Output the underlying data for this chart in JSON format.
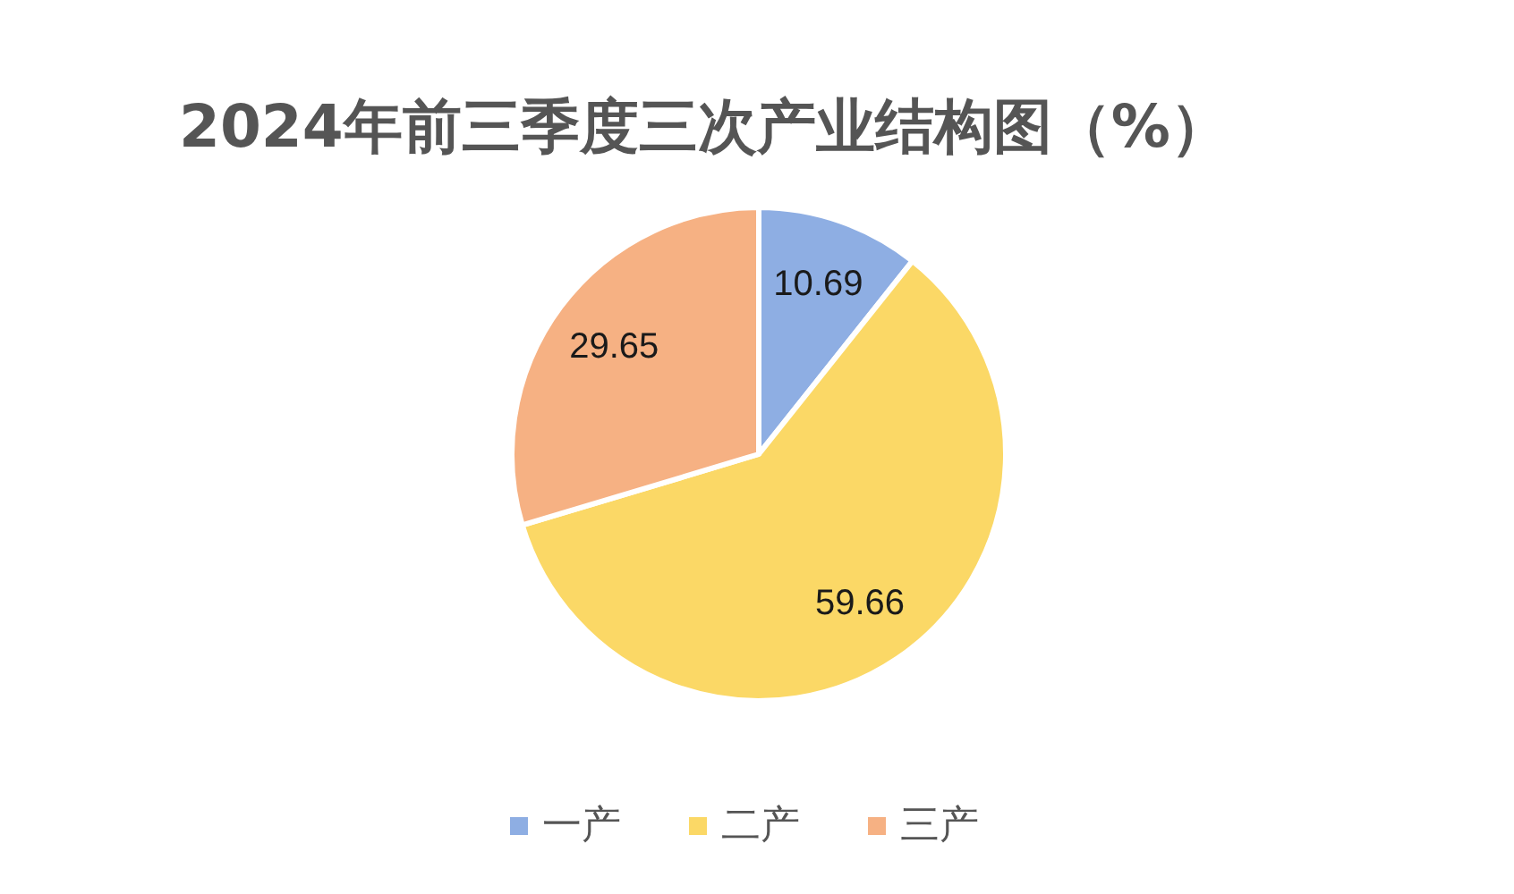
{
  "chart_data": {
    "type": "pie",
    "title": "2024年前三季度三次产业结构图（%）",
    "categories": [
      "一产",
      "二产",
      "三产"
    ],
    "values": [
      10.69,
      59.66,
      29.65
    ],
    "colors": [
      "#8eaee3",
      "#fbd866",
      "#f6b183"
    ],
    "data_labels": true,
    "legend": "bottom"
  }
}
